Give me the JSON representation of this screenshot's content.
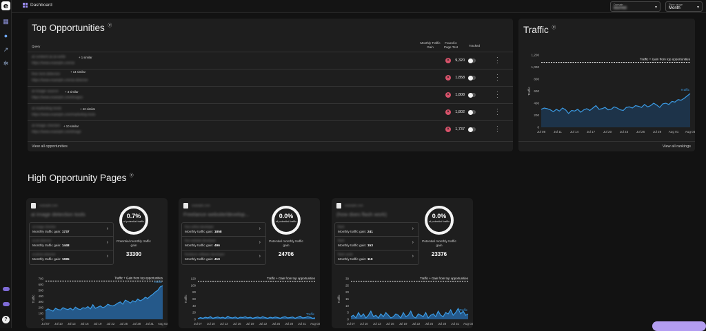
{
  "app": {
    "logo": "e",
    "breadcrumb": "Dashboard"
  },
  "nav": {
    "icons": [
      "dashboard-icon",
      "help-icon",
      "chart-icon",
      "gear-icon"
    ],
    "bottom": [
      "toggle-a",
      "toggle-b",
      "help-circle-icon"
    ],
    "help_glyph": "?"
  },
  "filters": {
    "domain": {
      "label": "Domain",
      "value": "blurred"
    },
    "time_range": {
      "label": "Time range",
      "value": "Month"
    }
  },
  "top_opportunities": {
    "title": "Top Opportunities",
    "columns": {
      "query": "Query",
      "gain": "Monthly Traffic Gain",
      "found": "Found in Page Text",
      "tracked": "Tracked"
    },
    "rows": [
      {
        "query": "ai content ai-ai-write",
        "url": "https://www.example.com/ai",
        "similar": "+ 1 similar",
        "gain": "9,320"
      },
      {
        "query": "free text detector",
        "url": "https://www.example.com/ai-detector",
        "similar": "+ 14 similar",
        "gain": "1,858"
      },
      {
        "query": "ai image source",
        "url": "https://www.example.com/images",
        "similar": "+ 3 similar",
        "gain": "1,808"
      },
      {
        "query": "ai marketing tools",
        "url": "https://www.example.com/marketing-tools",
        "similar": "+ 42 similar",
        "gain": "1,802"
      },
      {
        "query": "ai image checker",
        "url": "https://www.example.com/image",
        "similar": "+ 10 similar",
        "gain": "1,737"
      }
    ],
    "footer": "View all opportunities"
  },
  "traffic": {
    "title": "Traffic",
    "footer": "View all rankings",
    "chart_data": {
      "type": "line",
      "title": "Traffic",
      "ylabel": "Traffic",
      "ylim": [
        0,
        1200
      ],
      "yticks": [
        "0",
        "200",
        "400",
        "600",
        "800",
        "1,000",
        "1,200"
      ],
      "xticks": [
        "Jul 08",
        "Jul 11",
        "Jul 14",
        "Jul 17",
        "Jul 20",
        "Jul 23",
        "Jul 26",
        "Jul 29",
        "Aug 01",
        "Aug 04"
      ],
      "reference_label": "Traffic + Gain from top opportunities",
      "reference_value": 1080,
      "series": [
        {
          "name": "Traffic",
          "values": [
            300,
            320,
            310,
            290,
            260,
            300,
            270,
            320,
            290,
            230,
            280,
            270,
            300,
            250,
            290,
            310,
            280,
            320,
            360,
            300,
            310,
            330,
            290,
            300,
            340,
            320,
            290,
            280,
            330,
            340,
            320,
            360,
            350,
            330,
            380,
            340,
            360,
            400,
            370,
            330,
            390,
            400,
            380,
            430,
            420,
            460,
            450,
            480,
            520,
            560
          ]
        }
      ]
    }
  },
  "high_opportunity": {
    "title": "High Opportunity Pages",
    "cards": [
      {
        "small": "example.com",
        "title": "ai image detection tools",
        "queries": [
          {
            "name": "ai image checker",
            "gain_label": "Monthly traffic gain:",
            "gain": "1737"
          },
          {
            "name": "ai art detector",
            "gain_label": "Monthly traffic gain:",
            "gain": "1448"
          },
          {
            "name": "ai photo detector",
            "gain_label": "Monthly traffic gain:",
            "gain": "1085"
          }
        ],
        "percent": "0.7%",
        "percent_label": "of potential traffic",
        "potential_label": "Potential monthly traffic gain",
        "potential": "33300",
        "chart_data": {
          "type": "area",
          "ylabel": "Traffic",
          "ylim": [
            0,
            700
          ],
          "yticks": [
            "0",
            "100",
            "200",
            "300",
            "400",
            "500",
            "600",
            "700"
          ],
          "xticks": [
            "Jul 07",
            "Jul 10",
            "Jul 13",
            "Jul 16",
            "Jul 19",
            "Jul 22",
            "Jul 25",
            "Jul 28",
            "Jul 31",
            "Aug 03"
          ],
          "reference_label": "Traffic + Gain from top opportunities",
          "reference_value": 660,
          "series": [
            {
              "name": "Traffic",
              "values": [
                150,
                180,
                160,
                140,
                190,
                170,
                160,
                200,
                180,
                170,
                190,
                160,
                210,
                180,
                170,
                200,
                190,
                220,
                180,
                250,
                190,
                210,
                230,
                200,
                220,
                260,
                240,
                230,
                250,
                280,
                300,
                260,
                330,
                310,
                280,
                320,
                300,
                350,
                320,
                340,
                380,
                360,
                400,
                430,
                470,
                500,
                560,
                580
              ]
            }
          ]
        }
      },
      {
        "small": "example.com",
        "title": "Freelance website/develop...",
        "queries": [
          {
            "name": "free online developer",
            "gain_label": "Monthly traffic gain:",
            "gain": "1858"
          },
          {
            "name": "free website developer",
            "gain_label": "Monthly traffic gain:",
            "gain": "496"
          },
          {
            "name": "freelance software developer",
            "gain_label": "Monthly traffic gain:",
            "gain": "410"
          }
        ],
        "percent": "0.0%",
        "percent_label": "of potential traffic",
        "potential_label": "Potential monthly traffic gain",
        "potential": "24706",
        "chart_data": {
          "type": "area",
          "ylabel": "Traffic",
          "ylim": [
            0,
            120
          ],
          "yticks": [
            "0",
            "20",
            "40",
            "60",
            "80",
            "100",
            "120"
          ],
          "xticks": [
            "Jul 07",
            "Jul 10",
            "Jul 13",
            "Jul 16",
            "Jul 19",
            "Jul 22",
            "Jul 25",
            "Jul 28",
            "Jul 31",
            "Aug 03"
          ],
          "reference_label": "Traffic + Gain from top opportunities",
          "reference_value": 112,
          "series": [
            {
              "name": "Traffic",
              "values": [
                2,
                5,
                3,
                6,
                4,
                8,
                3,
                5,
                7,
                4,
                6,
                3,
                9,
                5,
                4,
                7,
                3,
                6,
                5,
                8,
                4,
                6,
                3,
                5,
                7,
                4,
                8,
                5,
                3,
                6,
                4,
                7,
                5,
                3,
                6,
                8,
                4,
                5,
                7,
                3,
                6,
                9,
                4,
                5,
                8,
                6,
                3,
                4
              ]
            }
          ]
        }
      },
      {
        "small": "example.com",
        "title": "(how does flash work)",
        "queries": [
          {
            "name": "flash",
            "gain_label": "Monthly traffic gain:",
            "gain": "241"
          },
          {
            "name": "flash",
            "gain_label": "Monthly traffic gain:",
            "gain": "153"
          },
          {
            "name": "flash cards",
            "gain_label": "Monthly traffic gain:",
            "gain": "119"
          }
        ],
        "percent": "0.0%",
        "percent_label": "of potential traffic",
        "potential_label": "Potential monthly traffic gain",
        "potential": "23376",
        "chart_data": {
          "type": "area",
          "ylabel": "Traffic",
          "ylim": [
            0,
            30
          ],
          "yticks": [
            "0",
            "5",
            "10",
            "15",
            "20",
            "25",
            "30"
          ],
          "xticks": [
            "Jul 07",
            "Jul 10",
            "Jul 13",
            "Jul 16",
            "Jul 19",
            "Jul 22",
            "Jul 25",
            "Jul 28",
            "Jul 31",
            "Aug 03"
          ],
          "reference_label": "Traffic + Gain from top opportunities",
          "reference_value": 28,
          "series": [
            {
              "name": "Traffic",
              "values": [
                2,
                3,
                1,
                5,
                2,
                4,
                1,
                3,
                6,
                2,
                3,
                1,
                4,
                2,
                5,
                3,
                1,
                2,
                4,
                3,
                1,
                5,
                2,
                3,
                6,
                2,
                1,
                4,
                3,
                2,
                5,
                1,
                3,
                4,
                2,
                6,
                3,
                2,
                5,
                4,
                7,
                3,
                5,
                8,
                4,
                6,
                3,
                4
              ]
            }
          ]
        }
      }
    ]
  }
}
